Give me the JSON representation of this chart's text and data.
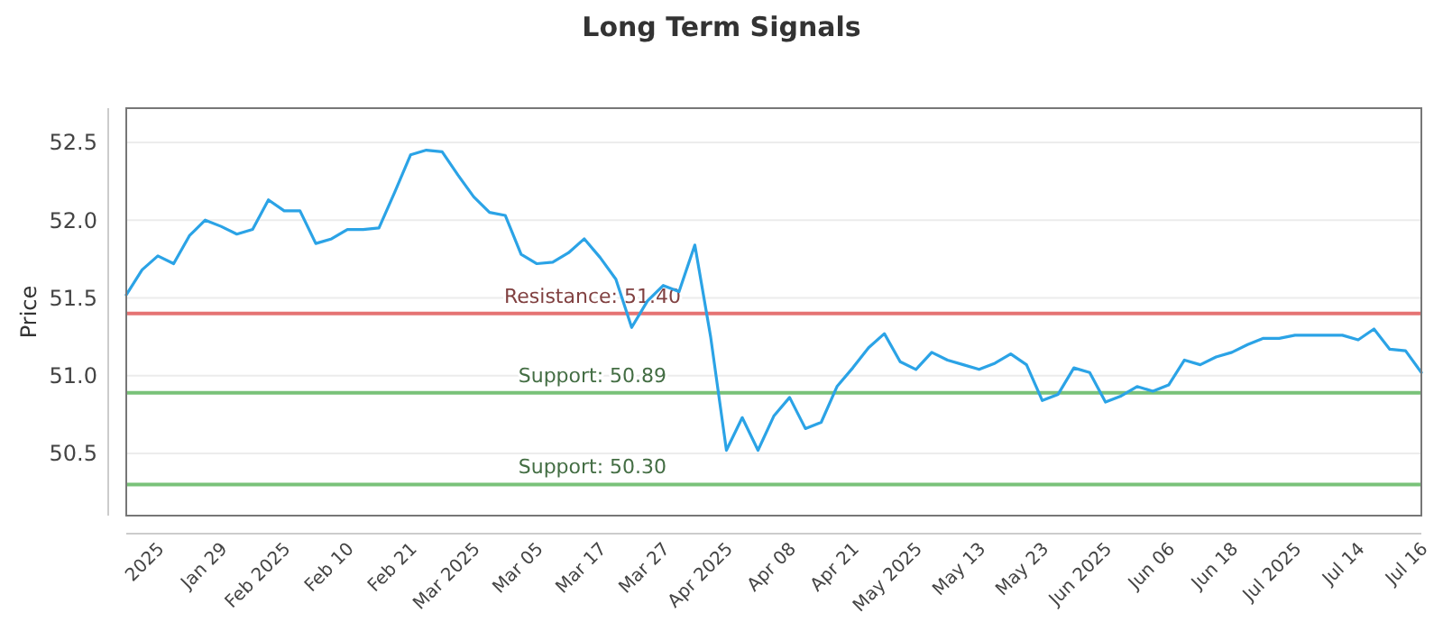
{
  "chart_data": {
    "type": "line",
    "title": "Long Term Signals",
    "ylabel": "Price",
    "categories": [
      null,
      null,
      "2025",
      null,
      null,
      null,
      "Jan 29",
      null,
      null,
      null,
      "Feb 2025",
      null,
      null,
      null,
      "Feb 10",
      null,
      null,
      null,
      "Feb 21",
      null,
      null,
      null,
      "Mar 2025",
      null,
      null,
      null,
      "Mar 05",
      null,
      null,
      null,
      "Mar 17",
      null,
      null,
      null,
      "Mar 27",
      null,
      null,
      null,
      "Apr 2025",
      null,
      null,
      null,
      "Apr 08",
      null,
      null,
      null,
      "Apr 21",
      null,
      null,
      null,
      "May 2025",
      null,
      null,
      null,
      "May 13",
      null,
      null,
      null,
      "May 23",
      null,
      null,
      null,
      "Jun 2025",
      null,
      null,
      null,
      "Jun 06",
      null,
      null,
      null,
      "Jun 18",
      null,
      null,
      null,
      "Jul 2025",
      null,
      null,
      null,
      "Jul 14",
      null,
      null,
      null,
      "Jul 16"
    ],
    "series": [
      {
        "color": "#2ba3e6",
        "values": [
          51.52,
          51.68,
          51.77,
          51.72,
          51.9,
          52.0,
          51.96,
          51.91,
          51.94,
          52.13,
          52.06,
          52.06,
          51.85,
          51.88,
          51.94,
          51.94,
          51.95,
          52.18,
          52.42,
          52.45,
          52.44,
          52.29,
          52.15,
          52.05,
          52.03,
          51.78,
          51.72,
          51.73,
          51.79,
          51.88,
          51.76,
          51.62,
          51.31,
          51.48,
          51.58,
          51.54,
          51.84,
          51.25,
          50.52,
          50.73,
          50.52,
          50.74,
          50.86,
          50.66,
          50.7,
          50.93,
          51.05,
          51.18,
          51.27,
          51.09,
          51.04,
          51.15,
          51.1,
          51.07,
          51.04,
          51.08,
          51.14,
          51.07,
          50.84,
          50.88,
          51.05,
          51.02,
          50.83,
          50.87,
          50.93,
          50.9,
          50.94,
          51.1,
          51.07,
          51.12,
          51.15,
          51.2,
          51.24,
          51.24,
          51.26,
          51.26,
          51.26,
          51.26,
          51.23,
          51.3,
          51.17,
          51.16,
          51.02
        ]
      }
    ],
    "ylim": [
      50.1,
      52.72
    ],
    "yticks": [
      50.5,
      {
        "value": 51,
        "label": "51.0"
      },
      51.5,
      {
        "value": 52,
        "label": "52.0"
      },
      52.5
    ],
    "grid": "y",
    "marker": "none",
    "line_style": "solid",
    "ref_lines": [
      {
        "axis": "y",
        "value": 51.4,
        "label": "Resistance: 51.40",
        "color": "#e57373"
      },
      {
        "axis": "y",
        "value": 50.89,
        "label": "Support: 50.89",
        "color": "#79c279"
      },
      {
        "axis": "y",
        "value": 50.3,
        "label": "Support: 50.30",
        "color": "#79c279"
      }
    ]
  }
}
